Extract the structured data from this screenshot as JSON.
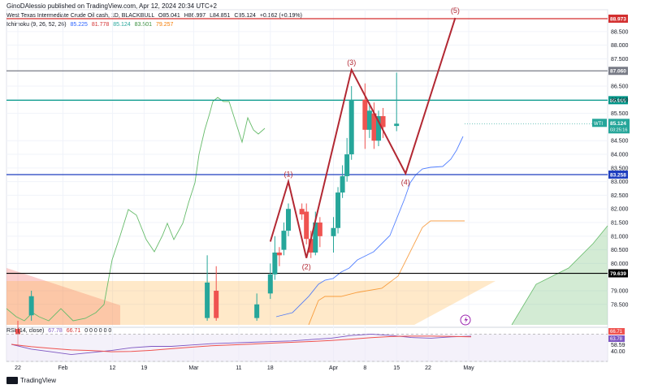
{
  "header": {
    "published_by": "GinoDAlessio published on TradingView.com, Apr 12, 2024 20:34 UTC+2",
    "symbol": "West Texas Intermediate Crude Oil cash, 1D, BLACKBULL",
    "open": "O85.041",
    "high": "H86.997",
    "low": "L84.851",
    "close": "C85.124",
    "change": "+0.162 (+0.19%)",
    "ichimoku_label": "Ichimoku (9, 26, 52, 26)",
    "ichimoku_values": [
      "85.225",
      "81.778",
      "85.124",
      "83.501",
      "79.257"
    ],
    "rsi_label": "RSI (14, close)",
    "rsi_values": [
      "67.78",
      "66.71"
    ],
    "rsi_zeros": "0  0  0  0  0  0"
  },
  "branding": {
    "logo_text": "TradingView"
  },
  "colors": {
    "up": "#26a69a",
    "down": "#ef5350",
    "wave": "#b22833",
    "tenkan": "#2962ff",
    "kijun": "#f57c00",
    "lagging": "#66bb6a",
    "resistance_top": "#d32f2f",
    "line_87": "#787b86",
    "line_85985": "#009688",
    "line_83258": "#1e3ebf",
    "line_79639": "#000000",
    "rsi": "#7e57c2"
  },
  "chart_data": [
    {
      "type": "candlestick",
      "title": "West Texas Intermediate Crude Oil cash, 1D, BLACKBULL",
      "y_ticks": [
        "88.500",
        "88.000",
        "87.500",
        "86.500",
        "86.000",
        "85.500",
        "84.500",
        "84.000",
        "83.500",
        "83.000",
        "82.500",
        "82.000",
        "81.500",
        "81.000",
        "80.500",
        "80.000",
        "79.000",
        "78.500"
      ],
      "x_ticks": [
        "22",
        "Feb",
        "12",
        "19",
        "Mar",
        "11",
        "18",
        "Apr",
        "8",
        "15",
        "22",
        "May"
      ],
      "ylim": [
        77.75,
        89.3
      ],
      "candles": [
        {
          "x": "2024-01-22",
          "o": 77.6,
          "h": 77.9,
          "l": 77.0,
          "c": 77.4
        },
        {
          "x": "2024-01-25",
          "o": 78.1,
          "h": 79.0,
          "l": 77.9,
          "c": 78.8
        },
        {
          "x": "2024-03-04",
          "o": 78.0,
          "h": 80.3,
          "l": 77.9,
          "c": 79.3
        },
        {
          "x": "2024-03-06",
          "o": 79.0,
          "h": 79.9,
          "l": 77.9,
          "c": 78.0
        },
        {
          "x": "2024-03-15",
          "o": 78.0,
          "h": 78.9,
          "l": 77.9,
          "c": 78.5
        },
        {
          "x": "2024-03-18",
          "o": 78.9,
          "h": 80.0,
          "l": 78.7,
          "c": 79.6
        },
        {
          "x": "2024-03-19",
          "o": 79.6,
          "h": 81.0,
          "l": 79.4,
          "c": 80.4
        },
        {
          "x": "2024-03-20",
          "o": 80.4,
          "h": 80.6,
          "l": 79.9,
          "c": 80.3
        },
        {
          "x": "2024-03-21",
          "o": 80.5,
          "h": 81.5,
          "l": 80.3,
          "c": 81.2
        },
        {
          "x": "2024-03-22",
          "o": 81.2,
          "h": 82.2,
          "l": 81.0,
          "c": 82.0
        },
        {
          "x": "2024-03-25",
          "o": 82.0,
          "h": 82.2,
          "l": 81.6,
          "c": 81.8
        },
        {
          "x": "2024-03-26",
          "o": 81.9,
          "h": 82.2,
          "l": 80.7,
          "c": 80.9
        },
        {
          "x": "2024-03-27",
          "o": 80.9,
          "h": 81.2,
          "l": 80.2,
          "c": 80.4
        },
        {
          "x": "2024-03-28",
          "o": 80.4,
          "h": 81.9,
          "l": 80.3,
          "c": 81.5
        },
        {
          "x": "2024-03-29",
          "o": 81.5,
          "h": 81.7,
          "l": 80.6,
          "c": 81.0
        },
        {
          "x": "2024-04-01",
          "o": 81.0,
          "h": 81.7,
          "l": 80.4,
          "c": 81.3
        },
        {
          "x": "2024-04-02",
          "o": 81.3,
          "h": 82.8,
          "l": 81.1,
          "c": 82.6
        },
        {
          "x": "2024-04-03",
          "o": 82.6,
          "h": 83.6,
          "l": 82.4,
          "c": 83.2
        },
        {
          "x": "2024-04-04",
          "o": 83.2,
          "h": 84.6,
          "l": 83.0,
          "c": 84.0
        },
        {
          "x": "2024-04-05",
          "o": 84.0,
          "h": 86.5,
          "l": 83.8,
          "c": 86.0
        },
        {
          "x": "2024-04-08",
          "o": 86.0,
          "h": 86.6,
          "l": 84.2,
          "c": 84.9
        },
        {
          "x": "2024-04-09",
          "o": 84.9,
          "h": 85.9,
          "l": 84.6,
          "c": 85.6
        },
        {
          "x": "2024-04-10",
          "o": 85.5,
          "h": 85.9,
          "l": 84.2,
          "c": 84.5
        },
        {
          "x": "2024-04-11",
          "o": 84.5,
          "h": 85.6,
          "l": 84.3,
          "c": 85.4
        },
        {
          "x": "2024-04-12",
          "o": 85.4,
          "h": 85.7,
          "l": 84.6,
          "c": 85.0
        },
        {
          "x": "2024-04-15",
          "o": 85.04,
          "h": 86.997,
          "l": 84.85,
          "c": 85.124
        }
      ],
      "horizontal_levels": [
        {
          "value": 88.973,
          "label": "88.973",
          "color_key": "resistance_top"
        },
        {
          "value": 87.06,
          "label": "87.060",
          "color_key": "line_87"
        },
        {
          "value": 85.985,
          "label": "85.985",
          "color_key": "line_85985"
        },
        {
          "value": 83.258,
          "label": "83.258",
          "color_key": "line_83258"
        },
        {
          "value": 79.639,
          "label": "79.639",
          "color_key": "line_79639"
        }
      ],
      "price_badge": {
        "symbol": "WTI",
        "price": "85.124",
        "countdown": "03:25:16"
      },
      "elliott_waves": [
        {
          "label": "(1)",
          "x": "2024-03-22",
          "y": 83.0
        },
        {
          "label": "(2)",
          "x": "2024-03-26",
          "y": 80.2
        },
        {
          "label": "(3)",
          "x": "2024-04-05",
          "y": 87.1
        },
        {
          "label": "(4)",
          "x": "2024-04-17",
          "y": 83.3
        },
        {
          "label": "(5)",
          "x": "2024-04-28",
          "y": 89.0
        }
      ]
    },
    {
      "type": "line",
      "title": "RSI (14, close)",
      "y_ticks": [
        "58.59",
        "40.00"
      ],
      "level_badges": [
        "66.71",
        "63.78"
      ],
      "ylim": [
        30,
        80
      ],
      "values": [
        55,
        48,
        44,
        40,
        43,
        46,
        50,
        52,
        52,
        54,
        56,
        57,
        58,
        59,
        60,
        62,
        64,
        68,
        70,
        68,
        65,
        64,
        66,
        67
      ]
    }
  ]
}
